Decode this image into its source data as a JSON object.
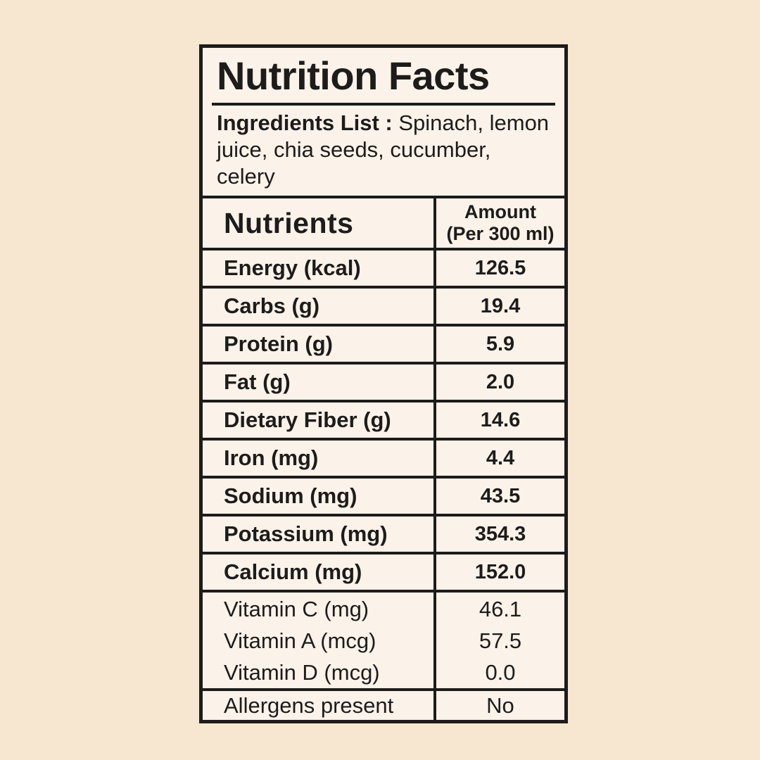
{
  "colors": {
    "page_bg": "#f8e7d0",
    "panel_bg": "#fbf2ea",
    "ink": "#1d1c1a"
  },
  "title": "Nutrition Facts",
  "ingredients": {
    "label": "Ingredients List :",
    "text": " Spinach, lemon juice, chia seeds, cucumber, celery"
  },
  "table": {
    "header": {
      "nutrients": "Nutrients",
      "amount_line1": "Amount",
      "amount_line2": "(Per 300 ml)"
    },
    "rows": [
      {
        "label": "Energy (kcal)",
        "value": "126.5"
      },
      {
        "label": "Carbs (g)",
        "value": "19.4"
      },
      {
        "label": "Protein (g)",
        "value": "5.9"
      },
      {
        "label": "Fat (g)",
        "value": "2.0"
      },
      {
        "label": "Dietary Fiber (g)",
        "value": "14.6"
      },
      {
        "label": "Iron (mg)",
        "value": "4.4"
      },
      {
        "label": "Sodium (mg)",
        "value": "43.5"
      },
      {
        "label": "Potassium (mg)",
        "value": "354.3"
      },
      {
        "label": "Calcium (mg)",
        "value": "152.0"
      }
    ],
    "vitamins": [
      {
        "label": "Vitamin C (mg)",
        "value": "46.1"
      },
      {
        "label": "Vitamin A (mcg)",
        "value": "57.5"
      },
      {
        "label": "Vitamin D (mcg)",
        "value": "0.0"
      }
    ],
    "allergens": {
      "label": "Allergens present",
      "value": "No"
    }
  }
}
